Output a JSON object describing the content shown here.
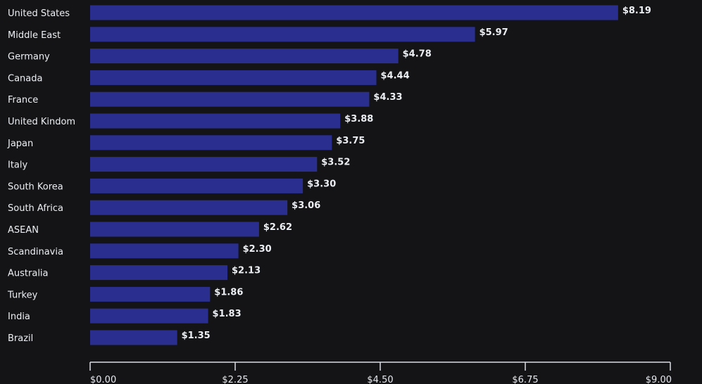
{
  "chart_data": {
    "type": "bar",
    "orientation": "horizontal",
    "categories": [
      "United States",
      "Middle East",
      "Germany",
      "Canada",
      "France",
      "United Kindom",
      "Japan",
      "Italy",
      "South Korea",
      "South Africa",
      "ASEAN",
      "Scandinavia",
      "Australia",
      "Turkey",
      "India",
      "Brazil"
    ],
    "values": [
      8.19,
      5.97,
      4.78,
      4.44,
      4.33,
      3.88,
      3.75,
      3.52,
      3.3,
      3.06,
      2.62,
      2.3,
      2.13,
      1.86,
      1.83,
      1.35
    ],
    "value_labels": [
      "$8.19",
      "$5.97",
      "$4.78",
      "$4.44",
      "$4.33",
      "$3.88",
      "$3.75",
      "$3.52",
      "$3.30",
      "$3.06",
      "$2.62",
      "$2.30",
      "$2.13",
      "$1.86",
      "$1.83",
      "$1.35"
    ],
    "x_ticks": [
      0,
      2.25,
      4.5,
      6.75,
      9
    ],
    "x_tick_labels": [
      "$0.00",
      "$2.25",
      "$4.50",
      "$6.75",
      "$9.00"
    ],
    "xlim": [
      0,
      9
    ],
    "title": "",
    "xlabel": "",
    "ylabel": "",
    "grid": false,
    "legend": "none",
    "colors": {
      "background": "#141416",
      "bar": "#2a2f8f",
      "text": "#eceff3",
      "axis": "#d9dce2"
    }
  }
}
